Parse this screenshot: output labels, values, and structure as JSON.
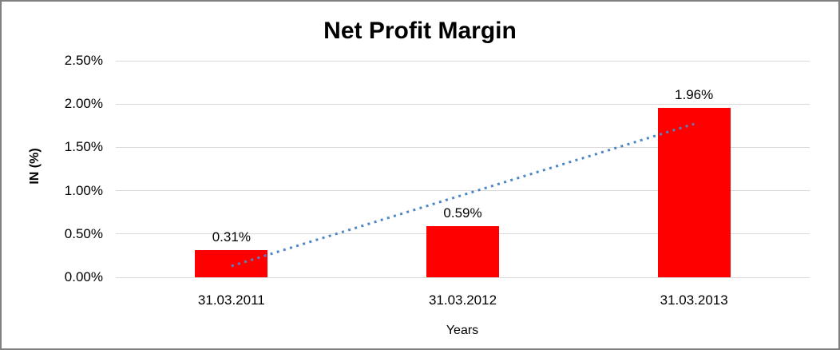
{
  "chart_data": {
    "type": "bar",
    "title": "Net Profit Margin",
    "categories": [
      "31.03.2011",
      "31.03.2012",
      "31.03.2013"
    ],
    "values": [
      0.31,
      0.59,
      1.96
    ],
    "data_labels": [
      "0.31%",
      "0.59%",
      "1.96%"
    ],
    "xlabel": "Years",
    "ylabel": "IN (%)",
    "ylim": [
      0,
      2.5
    ],
    "ytick_step": 0.5,
    "ytick_labels": [
      "0.00%",
      "0.50%",
      "1.00%",
      "1.50%",
      "2.00%",
      "2.50%"
    ],
    "grid": true,
    "legend": "none",
    "colors": {
      "bar": "#FF0000",
      "trendline": "#4D86C4",
      "gridline": "#D9D9D9",
      "text": "#000000"
    },
    "trendline": {
      "style": "dotted",
      "start_value": 0.13,
      "end_value": 1.77
    }
  }
}
